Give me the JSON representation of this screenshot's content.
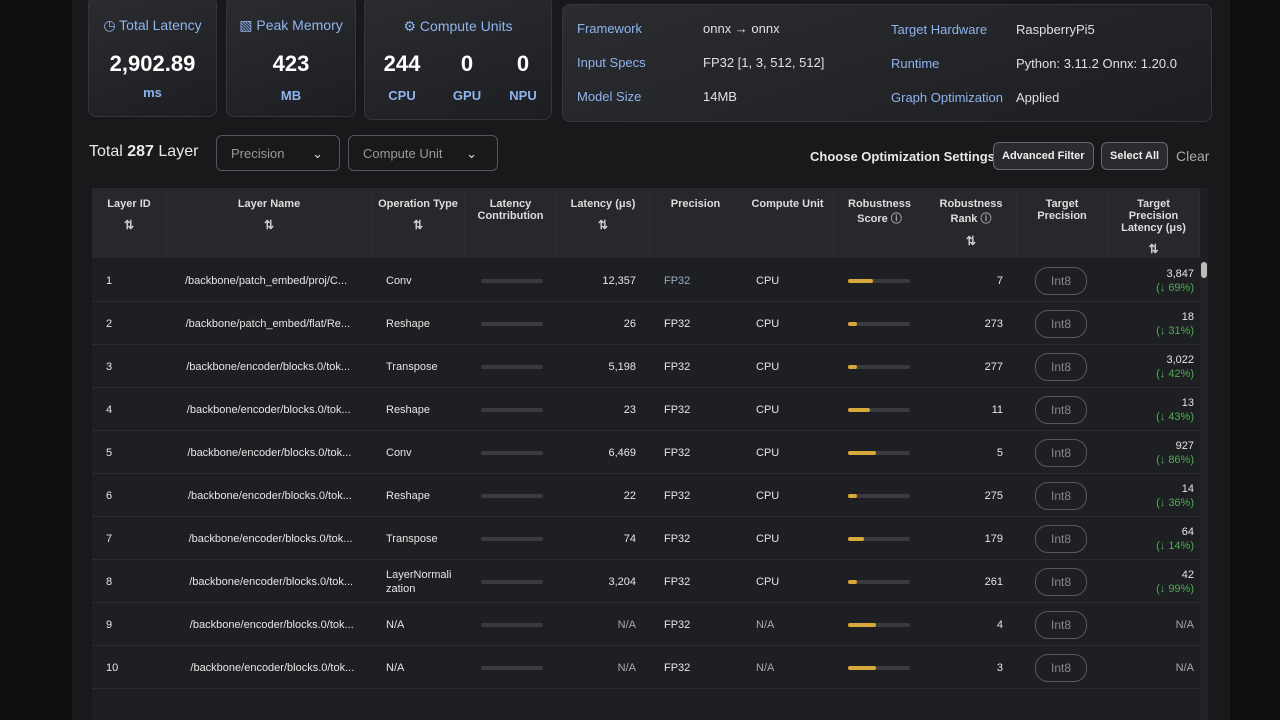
{
  "summary": {
    "latency": {
      "label": "Total Latency",
      "value": "2,902.89",
      "unit": "ms"
    },
    "memory": {
      "label": "Peak Memory",
      "value": "423",
      "unit": "MB"
    },
    "compute": {
      "label": "Compute Units",
      "items": [
        {
          "value": "244",
          "label": "CPU"
        },
        {
          "value": "0",
          "label": "GPU"
        },
        {
          "value": "0",
          "label": "NPU"
        }
      ]
    }
  },
  "info": [
    {
      "label": "Framework",
      "value": "onnx → onnx"
    },
    {
      "label": "Input Specs",
      "value": "FP32 [1, 3, 512, 512]"
    },
    {
      "label": "Model Size",
      "value": "14MB"
    },
    {
      "label": "Target Hardware",
      "value": "RaspberryPi5"
    },
    {
      "label": "Runtime",
      "value": "Python: 3.11.2 Onnx: 1.20.0"
    },
    {
      "label": "Graph Optimization",
      "value": "Applied"
    }
  ],
  "toolbar": {
    "total_prefix": "Total",
    "total_count": "287",
    "total_suffix": "Layer",
    "filters": [
      "Precision",
      "Compute Unit"
    ],
    "settings_label": "Choose Optimization Settings",
    "buttons": [
      "Advanced Filter",
      "Select All",
      "Clear"
    ]
  },
  "table": {
    "columns": [
      "Layer ID",
      "Layer Name",
      "Operation Type",
      "Latency Contribution",
      "Latency (μs)",
      "Precision",
      "Compute Unit",
      "Robustness Score",
      "Robustness Rank",
      "Target Precision",
      "Target Precision Latency (μs)"
    ],
    "rows": [
      {
        "id": "1",
        "name": "/backbone/patch_embed/proj/C...",
        "operation": "Conv",
        "latency": "12,357",
        "precision": "FP32",
        "compute_unit": "CPU",
        "robustness_score": 40,
        "robustness_rank": "7",
        "target_precision": "Int8",
        "target_latency": "3,847",
        "target_change": "(↓ 69%)"
      },
      {
        "id": "2",
        "name": "/backbone/patch_embed/flat/Re...",
        "operation": "Reshape",
        "latency": "26",
        "precision": "FP32",
        "compute_unit": "CPU",
        "robustness_score": 15,
        "robustness_rank": "273",
        "target_precision": "Int8",
        "target_latency": "18",
        "target_change": "(↓ 31%)"
      },
      {
        "id": "3",
        "name": "/backbone/encoder/blocks.0/tok...",
        "operation": "Transpose",
        "latency": "5,198",
        "precision": "FP32",
        "compute_unit": "CPU",
        "robustness_score": 15,
        "robustness_rank": "277",
        "target_precision": "Int8",
        "target_latency": "3,022",
        "target_change": "(↓ 42%)"
      },
      {
        "id": "4",
        "name": "/backbone/encoder/blocks.0/tok...",
        "operation": "Reshape",
        "latency": "23",
        "precision": "FP32",
        "compute_unit": "CPU",
        "robustness_score": 35,
        "robustness_rank": "11",
        "target_precision": "Int8",
        "target_latency": "13",
        "target_change": "(↓ 43%)"
      },
      {
        "id": "5",
        "name": "/backbone/encoder/blocks.0/tok...",
        "operation": "Conv",
        "latency": "6,469",
        "precision": "FP32",
        "compute_unit": "CPU",
        "robustness_score": 45,
        "robustness_rank": "5",
        "target_precision": "Int8",
        "target_latency": "927",
        "target_change": "(↓ 86%)"
      },
      {
        "id": "6",
        "name": "/backbone/encoder/blocks.0/tok...",
        "operation": "Reshape",
        "latency": "22",
        "precision": "FP32",
        "compute_unit": "CPU",
        "robustness_score": 15,
        "robustness_rank": "275",
        "target_precision": "Int8",
        "target_latency": "14",
        "target_change": "(↓ 36%)"
      },
      {
        "id": "7",
        "name": "/backbone/encoder/blocks.0/tok...",
        "operation": "Transpose",
        "latency": "74",
        "precision": "FP32",
        "compute_unit": "CPU",
        "robustness_score": 25,
        "robustness_rank": "179",
        "target_precision": "Int8",
        "target_latency": "64",
        "target_change": "(↓ 14%)"
      },
      {
        "id": "8",
        "name": "/backbone/encoder/blocks.0/tok...",
        "operation": "LayerNormalization",
        "latency": "3,204",
        "precision": "FP32",
        "compute_unit": "CPU",
        "robustness_score": 15,
        "robustness_rank": "261",
        "target_precision": "Int8",
        "target_latency": "42",
        "target_change": "(↓ 99%)"
      },
      {
        "id": "9",
        "name": "/backbone/encoder/blocks.0/tok...",
        "operation": "N/A",
        "latency": "N/A",
        "precision": "FP32",
        "compute_unit": "N/A",
        "robustness_score": 45,
        "robustness_rank": "4",
        "target_precision": "Int8",
        "target_latency": "N/A"
      },
      {
        "id": "10",
        "name": "/backbone/encoder/blocks.0/tok...",
        "operation": "N/A",
        "latency": "N/A",
        "precision": "FP32",
        "compute_unit": "N/A",
        "robustness_score": 45,
        "robustness_rank": "3",
        "target_precision": "Int8",
        "target_latency": "N/A"
      }
    ]
  }
}
